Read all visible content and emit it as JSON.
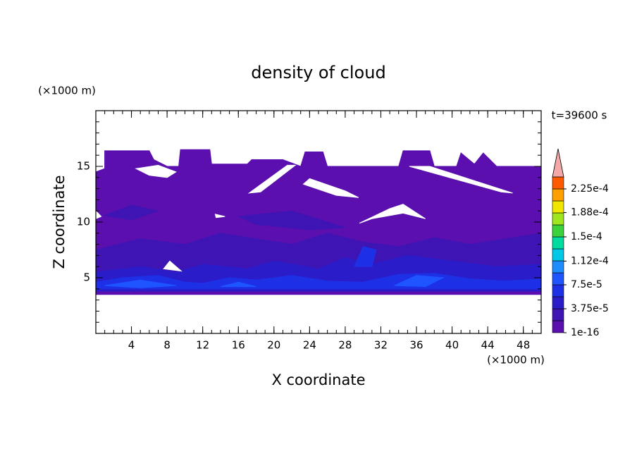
{
  "chart_data": {
    "type": "contour",
    "title": "density of cloud",
    "xlabel": "X coordinate",
    "ylabel": "Z coordinate",
    "xunit": "(×1000 m)",
    "yunit": "(×1000 m)",
    "time_label": "t=39600 s",
    "xlim": [
      0,
      50
    ],
    "ylim": [
      0,
      20
    ],
    "xticks": [
      4,
      8,
      12,
      16,
      20,
      24,
      28,
      32,
      36,
      40,
      44,
      48
    ],
    "yticks": [
      5,
      10,
      15
    ],
    "xminor": 1,
    "yminor": 1,
    "colorbar": {
      "ticks": [
        {
          "value": 1e-16,
          "label": "1e-16"
        },
        {
          "value": 3.75e-05,
          "label": "3.75e-5"
        },
        {
          "value": 7.5e-05,
          "label": "7.5e-5"
        },
        {
          "value": 0.000112,
          "label": "1.12e-4"
        },
        {
          "value": 0.00015,
          "label": "1.5e-4"
        },
        {
          "value": 0.000188,
          "label": "1.88e-4"
        },
        {
          "value": 0.000225,
          "label": "2.25e-4"
        }
      ],
      "colors": [
        "#5a0fae",
        "#3e14b4",
        "#2a1cc8",
        "#1e30e6",
        "#1e55ff",
        "#1e8cff",
        "#00c8e6",
        "#00dca0",
        "#3cd23c",
        "#a0e61e",
        "#f0e600",
        "#ffa000",
        "#ff5a00"
      ],
      "extend_color": "#f4a8a8"
    },
    "regions": [
      {
        "level": 0,
        "points": [
          [
            0,
            3.5
          ],
          [
            0,
            14.5
          ],
          [
            1,
            14.8
          ],
          [
            1,
            16.4
          ],
          [
            6,
            16.4
          ],
          [
            6.5,
            15.6
          ],
          [
            8,
            15
          ],
          [
            9.3,
            15
          ],
          [
            9.5,
            16.5
          ],
          [
            12.8,
            16.5
          ],
          [
            13,
            15.2
          ],
          [
            17,
            15.2
          ],
          [
            17.5,
            15.6
          ],
          [
            21,
            15.6
          ],
          [
            23,
            15
          ],
          [
            23.5,
            16.3
          ],
          [
            25.5,
            16.3
          ],
          [
            26,
            15
          ],
          [
            34,
            15
          ],
          [
            34.5,
            16.4
          ],
          [
            37.5,
            16.4
          ],
          [
            38,
            15
          ],
          [
            40.5,
            15
          ],
          [
            41,
            16.2
          ],
          [
            42.5,
            15.2
          ],
          [
            43.5,
            16.2
          ],
          [
            45,
            15
          ],
          [
            50,
            15
          ],
          [
            50,
            3.5
          ]
        ]
      },
      {
        "level": 1,
        "points": [
          [
            0,
            4.3
          ],
          [
            0,
            7.5
          ],
          [
            5,
            8.5
          ],
          [
            10,
            8
          ],
          [
            14,
            9
          ],
          [
            18,
            8.5
          ],
          [
            22,
            8
          ],
          [
            26,
            9
          ],
          [
            30,
            8.2
          ],
          [
            34,
            7.8
          ],
          [
            38,
            8.6
          ],
          [
            42,
            8
          ],
          [
            46,
            8.5
          ],
          [
            50,
            9
          ],
          [
            50,
            4.3
          ]
        ]
      },
      {
        "level": 1,
        "points": [
          [
            16,
            10.5
          ],
          [
            22,
            11
          ],
          [
            28,
            9.5
          ],
          [
            24,
            9.3
          ],
          [
            18,
            9.8
          ]
        ]
      },
      {
        "level": 1,
        "points": [
          [
            1,
            10.6
          ],
          [
            4,
            11.5
          ],
          [
            7,
            11
          ],
          [
            4,
            10.2
          ]
        ]
      },
      {
        "level": 2,
        "points": [
          [
            0,
            3.8
          ],
          [
            0,
            5.5
          ],
          [
            5,
            6
          ],
          [
            9,
            5.5
          ],
          [
            12,
            6.2
          ],
          [
            17,
            5.8
          ],
          [
            20,
            6.5
          ],
          [
            25,
            5.8
          ],
          [
            28,
            6.8
          ],
          [
            31,
            6.2
          ],
          [
            35,
            7
          ],
          [
            40,
            6.5
          ],
          [
            45,
            6
          ],
          [
            50,
            6.2
          ],
          [
            50,
            3.8
          ]
        ]
      },
      {
        "level": 3,
        "points": [
          [
            0,
            4
          ],
          [
            0,
            4.6
          ],
          [
            3,
            5
          ],
          [
            7,
            5.2
          ],
          [
            10,
            4.6
          ],
          [
            12,
            4.5
          ],
          [
            15,
            5
          ],
          [
            18,
            4.8
          ],
          [
            22,
            5.2
          ],
          [
            26,
            4.7
          ],
          [
            30,
            4.6
          ],
          [
            34,
            5.3
          ],
          [
            38,
            5.4
          ],
          [
            42,
            4.9
          ],
          [
            46,
            4.7
          ],
          [
            50,
            4.9
          ],
          [
            50,
            4
          ]
        ]
      },
      {
        "level": 3,
        "points": [
          [
            29,
            6
          ],
          [
            30,
            7.8
          ],
          [
            31.5,
            7.5
          ],
          [
            31,
            6
          ]
        ]
      },
      {
        "level": 4,
        "points": [
          [
            1,
            4.3
          ],
          [
            5,
            4.8
          ],
          [
            9,
            4.3
          ],
          [
            5,
            4.1
          ]
        ]
      },
      {
        "level": 4,
        "points": [
          [
            14,
            4.2
          ],
          [
            16,
            4.6
          ],
          [
            18,
            4.2
          ]
        ]
      },
      {
        "level": 4,
        "points": [
          [
            33.5,
            4.3
          ],
          [
            36,
            5.2
          ],
          [
            39,
            5
          ],
          [
            37,
            4.2
          ]
        ]
      }
    ],
    "gaps": [
      [
        [
          4.5,
          14.8
        ],
        [
          6,
          14.2
        ],
        [
          8,
          14
        ],
        [
          9,
          14.5
        ],
        [
          7,
          15.1
        ]
      ],
      [
        [
          0,
          11
        ],
        [
          0.6,
          10.5
        ],
        [
          0,
          10.3
        ]
      ],
      [
        [
          17.2,
          12.6
        ],
        [
          18.5,
          12.7
        ],
        [
          22.4,
          15.1
        ],
        [
          21.5,
          15.1
        ]
      ],
      [
        [
          23.3,
          13.4
        ],
        [
          24,
          13.9
        ],
        [
          28,
          12.8
        ],
        [
          29.5,
          12.2
        ],
        [
          27,
          12.4
        ]
      ],
      [
        [
          29.6,
          9.9
        ],
        [
          33,
          11.2
        ],
        [
          34.5,
          11.6
        ],
        [
          37,
          10.3
        ],
        [
          34.5,
          10.8
        ],
        [
          31,
          10.3
        ]
      ],
      [
        [
          35.2,
          15
        ],
        [
          37.5,
          15
        ],
        [
          46.8,
          12.6
        ],
        [
          45.5,
          12.7
        ]
      ],
      [
        [
          7.6,
          5.8
        ],
        [
          8.3,
          6.5
        ],
        [
          9.6,
          5.6
        ]
      ],
      [
        [
          13.4,
          10.7
        ],
        [
          14.5,
          10.5
        ],
        [
          13.5,
          10.4
        ]
      ]
    ]
  }
}
